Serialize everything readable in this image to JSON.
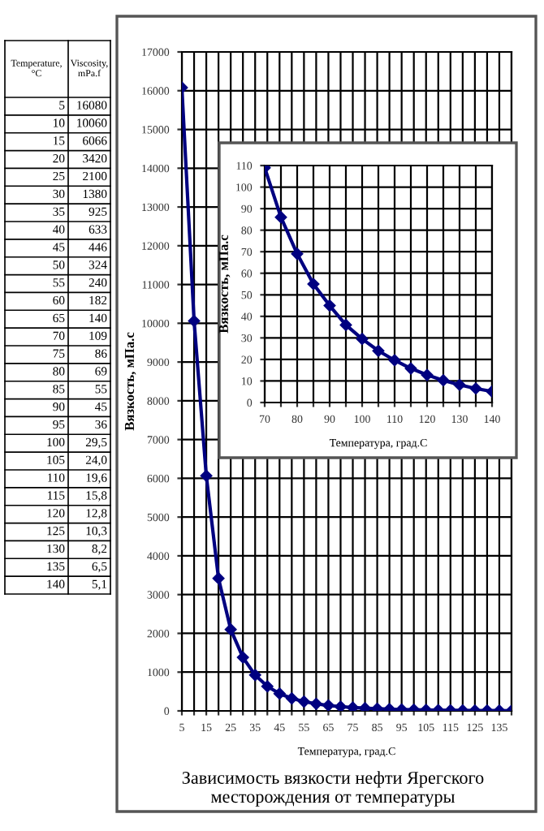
{
  "chart_data": [
    {
      "type": "other",
      "annotations": [
        "Temperature, °C",
        "Viscosity, mPa.f",
        "5",
        "16080",
        "10",
        "10060",
        "15",
        "6066",
        "20",
        "3420",
        "25",
        "2100",
        "30",
        "1380",
        "35",
        "925",
        "40",
        "633",
        "45",
        "446",
        "50",
        "324",
        "55",
        "240",
        "60",
        "182",
        "65",
        "140",
        "70",
        "109",
        "75",
        "86",
        "80",
        "69",
        "85",
        "55",
        "90",
        "45",
        "95",
        "36",
        "100",
        "29,5",
        "105",
        "24,0",
        "110",
        "19,6",
        "115",
        "15,8",
        "120",
        "12,8",
        "125",
        "10,3",
        "130",
        "8,2",
        "135",
        "6,5",
        "140",
        "5,1"
      ]
    },
    {
      "type": "line",
      "title": "Зависимость вязкости нефти Ярегского месторождения от температуры",
      "xlabel": "Температура, град.С",
      "ylabel": "Вязкость, мПа.с",
      "x": [
        5,
        10,
        15,
        20,
        25,
        30,
        35,
        40,
        45,
        50,
        55,
        60,
        65,
        70,
        75,
        80,
        85,
        90,
        95,
        100,
        105,
        110,
        115,
        120,
        125,
        130,
        135,
        140
      ],
      "series": [
        {
          "color": "#000080",
          "values": [
            16080,
            10060,
            6066,
            3420,
            2100,
            1380,
            925,
            633,
            446,
            324,
            240,
            182,
            140,
            109,
            86,
            69,
            55,
            45,
            36,
            29.5,
            24.0,
            19.6,
            15.8,
            12.8,
            10.3,
            8.2,
            6.5,
            5.1
          ]
        }
      ],
      "xlim": [
        5,
        140
      ],
      "xticks": [
        5,
        {
          "value": 10,
          "label": null
        },
        15,
        {
          "value": 20,
          "label": null
        },
        25,
        {
          "value": 30,
          "label": null
        },
        35,
        {
          "value": 40,
          "label": null
        },
        45,
        {
          "value": 50,
          "label": null
        },
        55,
        {
          "value": 60,
          "label": null
        },
        65,
        {
          "value": 70,
          "label": null
        },
        75,
        {
          "value": 80,
          "label": null
        },
        85,
        {
          "value": 90,
          "label": null
        },
        95,
        {
          "value": 100,
          "label": null
        },
        105,
        {
          "value": 110,
          "label": null
        },
        115,
        {
          "value": 120,
          "label": null
        },
        125,
        {
          "value": 130,
          "label": null
        },
        135,
        {
          "value": 140,
          "label": null
        }
      ],
      "ylim": [
        0,
        17000
      ],
      "yticks": [
        0,
        1000,
        2000,
        3000,
        4000,
        5000,
        6000,
        7000,
        8000,
        9000,
        10000,
        11000,
        12000,
        13000,
        14000,
        15000,
        16000,
        17000
      ],
      "grid": true,
      "marker": "diamond",
      "line_style": "solid",
      "legend": false
    },
    {
      "type": "line",
      "xlabel": "Температура, град.С",
      "ylabel": "Вязкость, мПа.с",
      "x": [
        70,
        75,
        80,
        85,
        90,
        95,
        100,
        105,
        110,
        115,
        120,
        125,
        130,
        135,
        140
      ],
      "series": [
        {
          "color": "#000080",
          "values": [
            109,
            86,
            69,
            55,
            45,
            36,
            29.5,
            24.0,
            19.6,
            15.8,
            12.8,
            10.3,
            8.2,
            6.5,
            5.1
          ]
        }
      ],
      "xlim": [
        70,
        140
      ],
      "xticks": [
        70,
        {
          "value": 75,
          "label": null
        },
        80,
        {
          "value": 85,
          "label": null
        },
        90,
        {
          "value": 95,
          "label": null
        },
        100,
        {
          "value": 105,
          "label": null
        },
        110,
        {
          "value": 115,
          "label": null
        },
        120,
        {
          "value": 125,
          "label": null
        },
        130,
        {
          "value": 135,
          "label": null
        },
        140
      ],
      "ylim": [
        0,
        110
      ],
      "yticks": [
        0,
        10,
        20,
        30,
        40,
        50,
        60,
        70,
        80,
        90,
        100,
        110
      ],
      "grid": true,
      "marker": "diamond",
      "line_style": "solid",
      "legend": false
    }
  ]
}
